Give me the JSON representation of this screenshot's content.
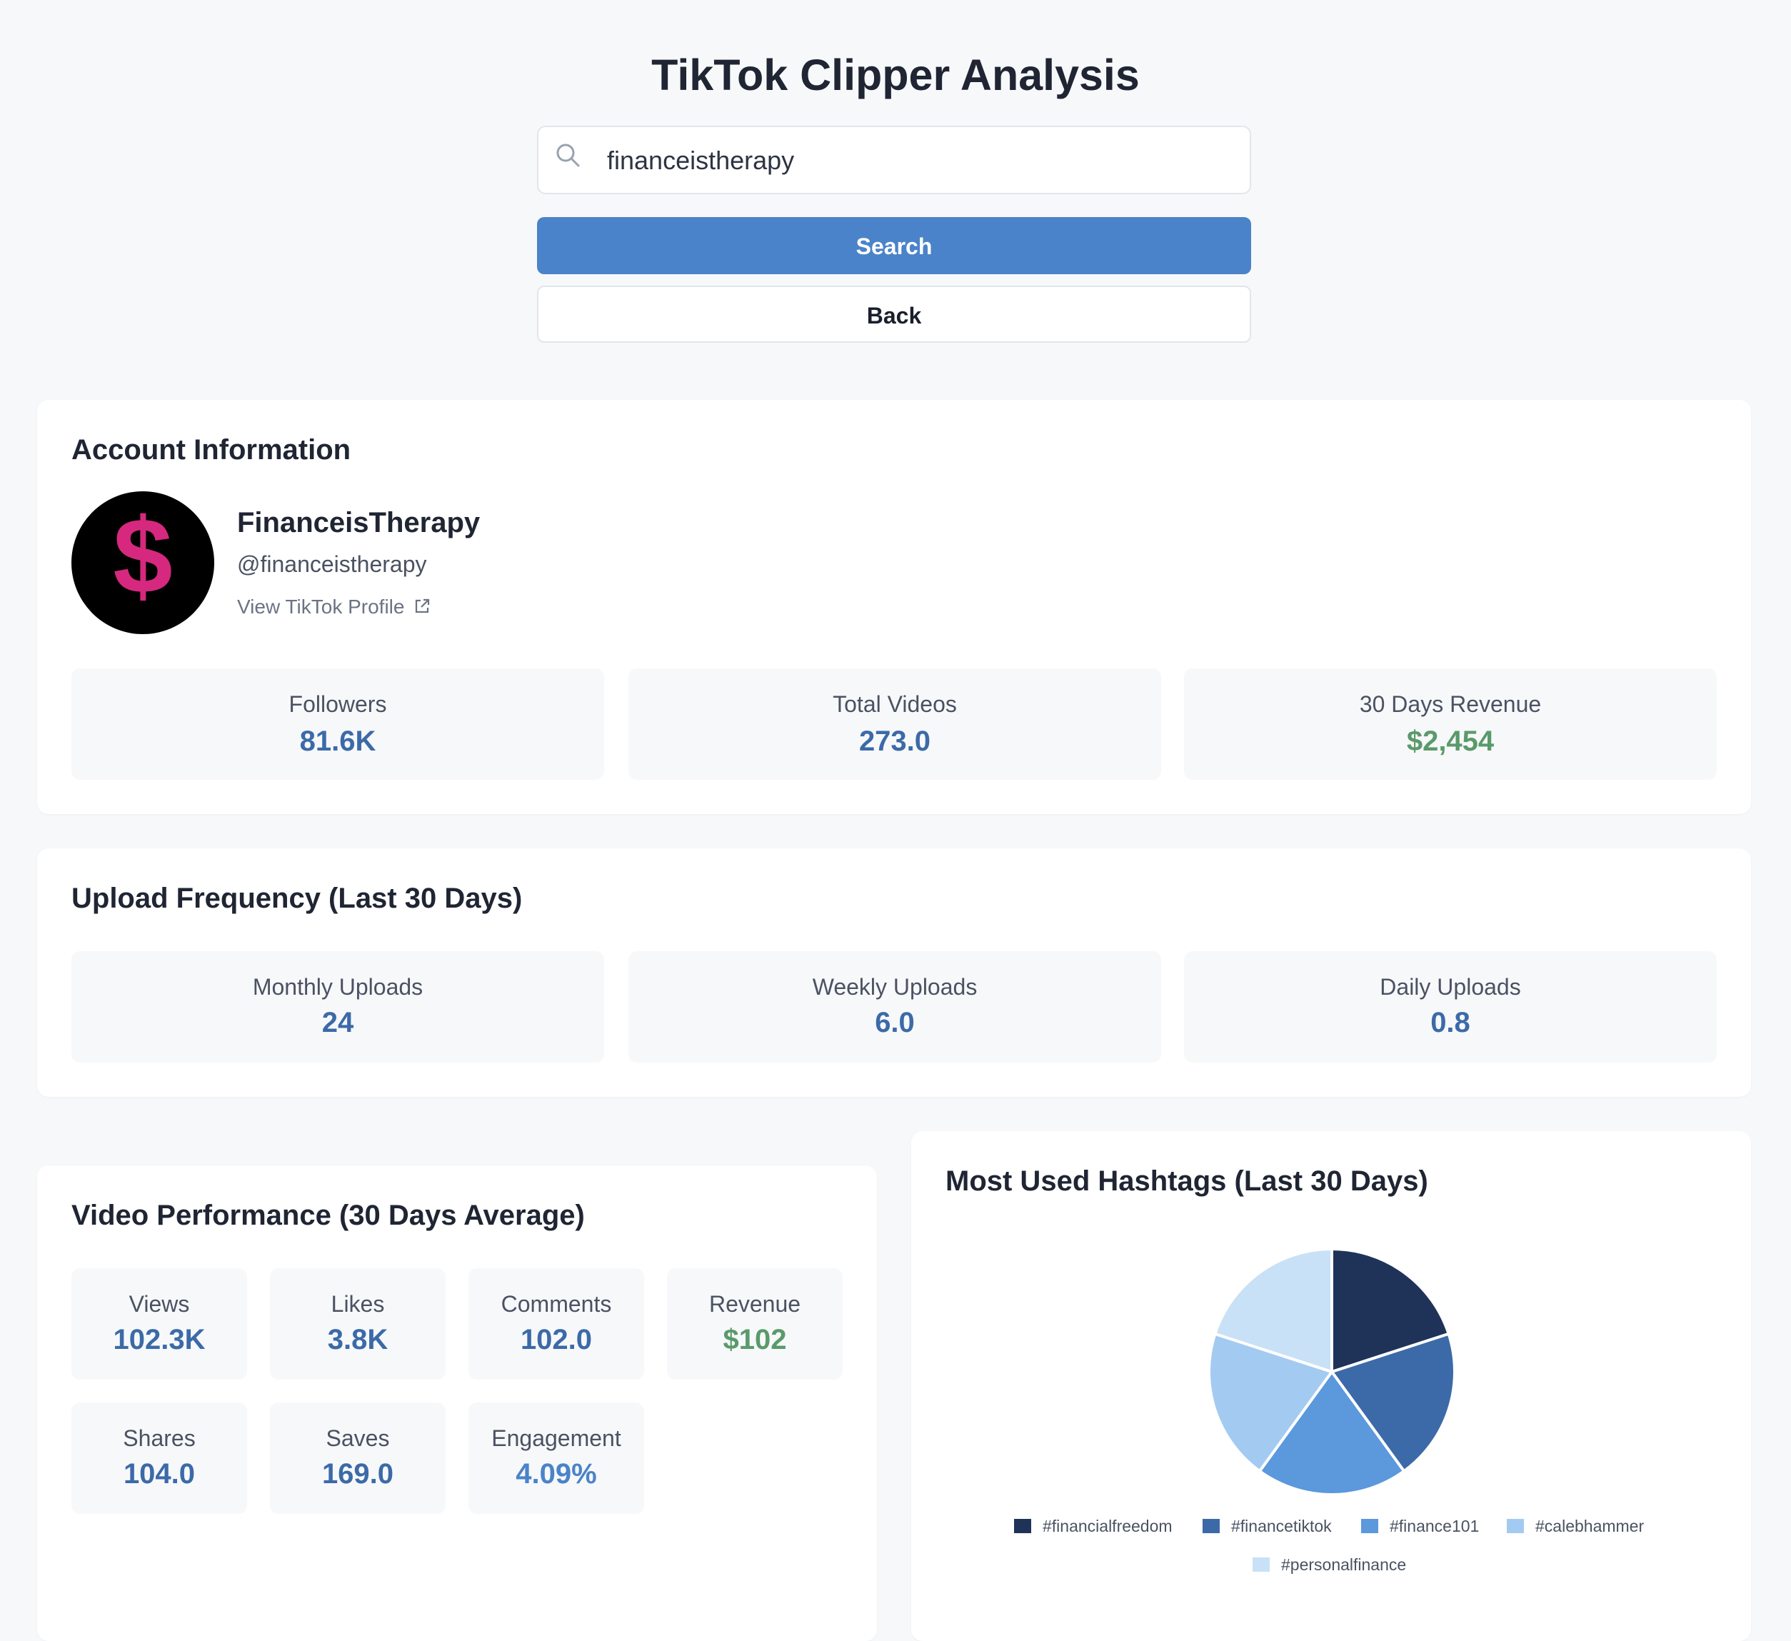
{
  "page": {
    "title": "TikTok Clipper Analysis"
  },
  "search": {
    "value": "financeistherapy",
    "placeholder": "",
    "search_label": "Search",
    "back_label": "Back"
  },
  "account": {
    "heading": "Account Information",
    "avatar_symbol": "$",
    "name": "FinanceisTherapy",
    "handle": "@financeistherapy",
    "profile_link": "View TikTok Profile",
    "stats": [
      {
        "label": "Followers",
        "value": "81.6K"
      },
      {
        "label": "Total Videos",
        "value": "273.0"
      },
      {
        "label": "30 Days Revenue",
        "value": "$2,454"
      }
    ]
  },
  "upload": {
    "heading": "Upload Frequency (Last 30 Days)",
    "stats": [
      {
        "label": "Monthly Uploads",
        "value": "24"
      },
      {
        "label": "Weekly Uploads",
        "value": "6.0"
      },
      {
        "label": "Daily Uploads",
        "value": "0.8"
      }
    ]
  },
  "performance": {
    "heading": "Video Performance (30 Days Average)",
    "stats": [
      {
        "label": "Views",
        "value": "102.3K"
      },
      {
        "label": "Likes",
        "value": "3.8K"
      },
      {
        "label": "Comments",
        "value": "102.0"
      },
      {
        "label": "Revenue",
        "value": "$102"
      },
      {
        "label": "Shares",
        "value": "104.0"
      },
      {
        "label": "Saves",
        "value": "169.0"
      },
      {
        "label": "Engagement",
        "value": "4.09%"
      }
    ]
  },
  "hashtags": {
    "heading": "Most Used Hashtags (Last 30 Days)"
  },
  "colors": {
    "accent": "#4a83c9",
    "revenue_green": "#5a9a6a",
    "value_blue": "#3c6aa8",
    "avatar_dollar": "#d6287f"
  },
  "chart_data": {
    "type": "pie",
    "legend_position": "bottom",
    "slices": [
      {
        "label": "#financialfreedom",
        "value": 1,
        "color": "#1f3359"
      },
      {
        "label": "#financetiktok",
        "value": 1,
        "color": "#3c6aa8"
      },
      {
        "label": "#finance101",
        "value": 1,
        "color": "#5b98dc"
      },
      {
        "label": "#calebhammer",
        "value": 1,
        "color": "#a3cbf2"
      },
      {
        "label": "#personalfinance",
        "value": 1,
        "color": "#c8e1f6"
      }
    ]
  }
}
